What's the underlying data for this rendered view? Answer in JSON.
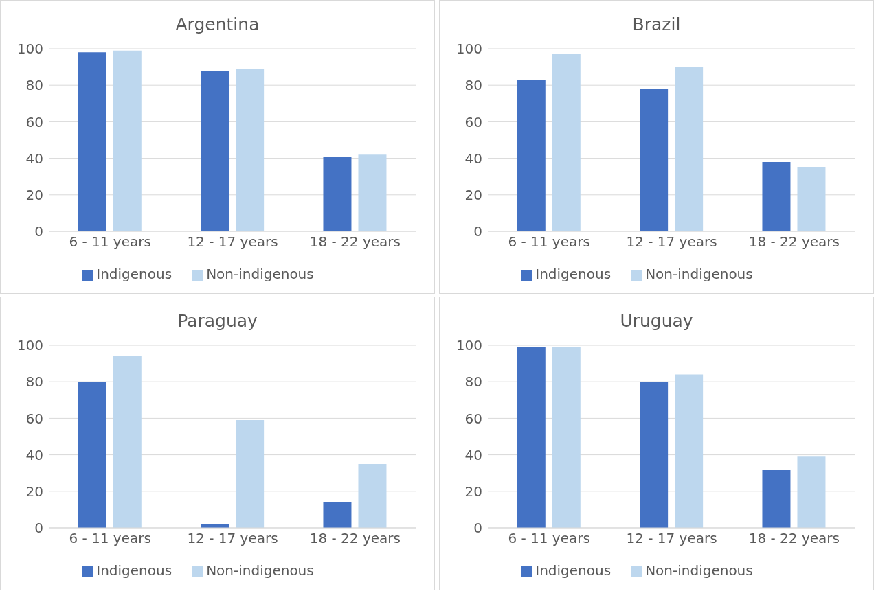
{
  "chart_data": [
    {
      "type": "bar",
      "title": "Argentina",
      "categories": [
        "6 - 11 years",
        "12 - 17 years",
        "18 - 22 years"
      ],
      "series": [
        {
          "name": "Indigenous",
          "color": "#4472c4",
          "values": [
            98,
            88,
            41
          ]
        },
        {
          "name": "Non-indigenous",
          "color": "#bdd7ee",
          "values": [
            99,
            89,
            42
          ]
        }
      ],
      "ylim": [
        0,
        100
      ],
      "yticks": [
        0,
        20,
        40,
        60,
        80,
        100
      ],
      "grid": "y",
      "legend": "bottom"
    },
    {
      "type": "bar",
      "title": "Brazil",
      "categories": [
        "6 - 11 years",
        "12 - 17 years",
        "18 - 22 years"
      ],
      "series": [
        {
          "name": "Indigenous",
          "color": "#4472c4",
          "values": [
            83,
            78,
            38
          ]
        },
        {
          "name": "Non-indigenous",
          "color": "#bdd7ee",
          "values": [
            97,
            90,
            35
          ]
        }
      ],
      "ylim": [
        0,
        100
      ],
      "yticks": [
        0,
        20,
        40,
        60,
        80,
        100
      ],
      "grid": "y",
      "legend": "bottom"
    },
    {
      "type": "bar",
      "title": "Paraguay",
      "categories": [
        "6 - 11 years",
        "12 - 17 years",
        "18 - 22 years"
      ],
      "series": [
        {
          "name": "Indigenous",
          "color": "#4472c4",
          "values": [
            80,
            2,
            14
          ]
        },
        {
          "name": "Non-indigenous",
          "color": "#bdd7ee",
          "values": [
            94,
            59,
            35
          ]
        }
      ],
      "ylim": [
        0,
        100
      ],
      "yticks": [
        0,
        20,
        40,
        60,
        80,
        100
      ],
      "grid": "y",
      "legend": "bottom"
    },
    {
      "type": "bar",
      "title": "Uruguay",
      "categories": [
        "6 - 11 years",
        "12 - 17 years",
        "18 - 22 years"
      ],
      "series": [
        {
          "name": "Indigenous",
          "color": "#4472c4",
          "values": [
            99,
            80,
            32
          ]
        },
        {
          "name": "Non-indigenous",
          "color": "#bdd7ee",
          "values": [
            99,
            84,
            39
          ]
        }
      ],
      "ylim": [
        0,
        100
      ],
      "yticks": [
        0,
        20,
        40,
        60,
        80,
        100
      ],
      "grid": "y",
      "legend": "bottom"
    }
  ]
}
